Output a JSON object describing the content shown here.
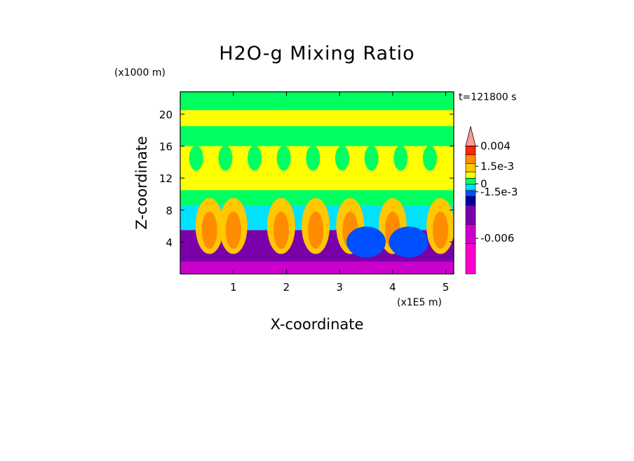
{
  "chart_data": {
    "type": "heatmap",
    "title": "H2O-g Mixing Ratio",
    "xlabel": "X-coordinate",
    "ylabel": "Z-coordinate",
    "x_unit": "(x1E5 m)",
    "y_unit": "(x1000 m)",
    "time_label": "t=121800 s",
    "xlim": [
      0,
      5.15
    ],
    "ylim": [
      0,
      22.8
    ],
    "x_ticks": [
      1,
      2,
      3,
      4,
      5
    ],
    "x_tick_labels": [
      "1",
      "2",
      "3",
      "4",
      "5"
    ],
    "y_ticks": [
      4,
      8,
      12,
      16,
      20
    ],
    "y_tick_labels": [
      "4",
      "8",
      "12",
      "16",
      "20"
    ],
    "field_bands": [
      {
        "z_min": 0.0,
        "z_max": 1.5,
        "level": "-0.006"
      },
      {
        "z_min": 1.5,
        "z_max": 5.5,
        "level": "-0.004"
      },
      {
        "z_min": 5.5,
        "z_max": 8.5,
        "level": "-1.5e-3"
      },
      {
        "z_min": 8.5,
        "z_max": 10.5,
        "level": "0"
      },
      {
        "z_min": 10.5,
        "z_max": 16.0,
        "level": "1e-3"
      },
      {
        "z_min": 16.0,
        "z_max": 18.5,
        "level": "0"
      },
      {
        "z_min": 18.5,
        "z_max": 20.5,
        "level": "1e-3"
      },
      {
        "z_min": 20.5,
        "z_max": 22.8,
        "level": "0"
      }
    ],
    "colorbar": {
      "colors": [
        "#ff00cc",
        "#cc00cc",
        "#7a00aa",
        "#0000a0",
        "#0050ff",
        "#00e0ff",
        "#00ff60",
        "#ffff00",
        "#ffc800",
        "#ff8c00",
        "#ff2800",
        "#ff9a9a"
      ],
      "tick_labels": [
        "0.004",
        "1.5e-3",
        "0",
        "-1.5e-3",
        "-0.006"
      ],
      "extend": "max"
    }
  }
}
